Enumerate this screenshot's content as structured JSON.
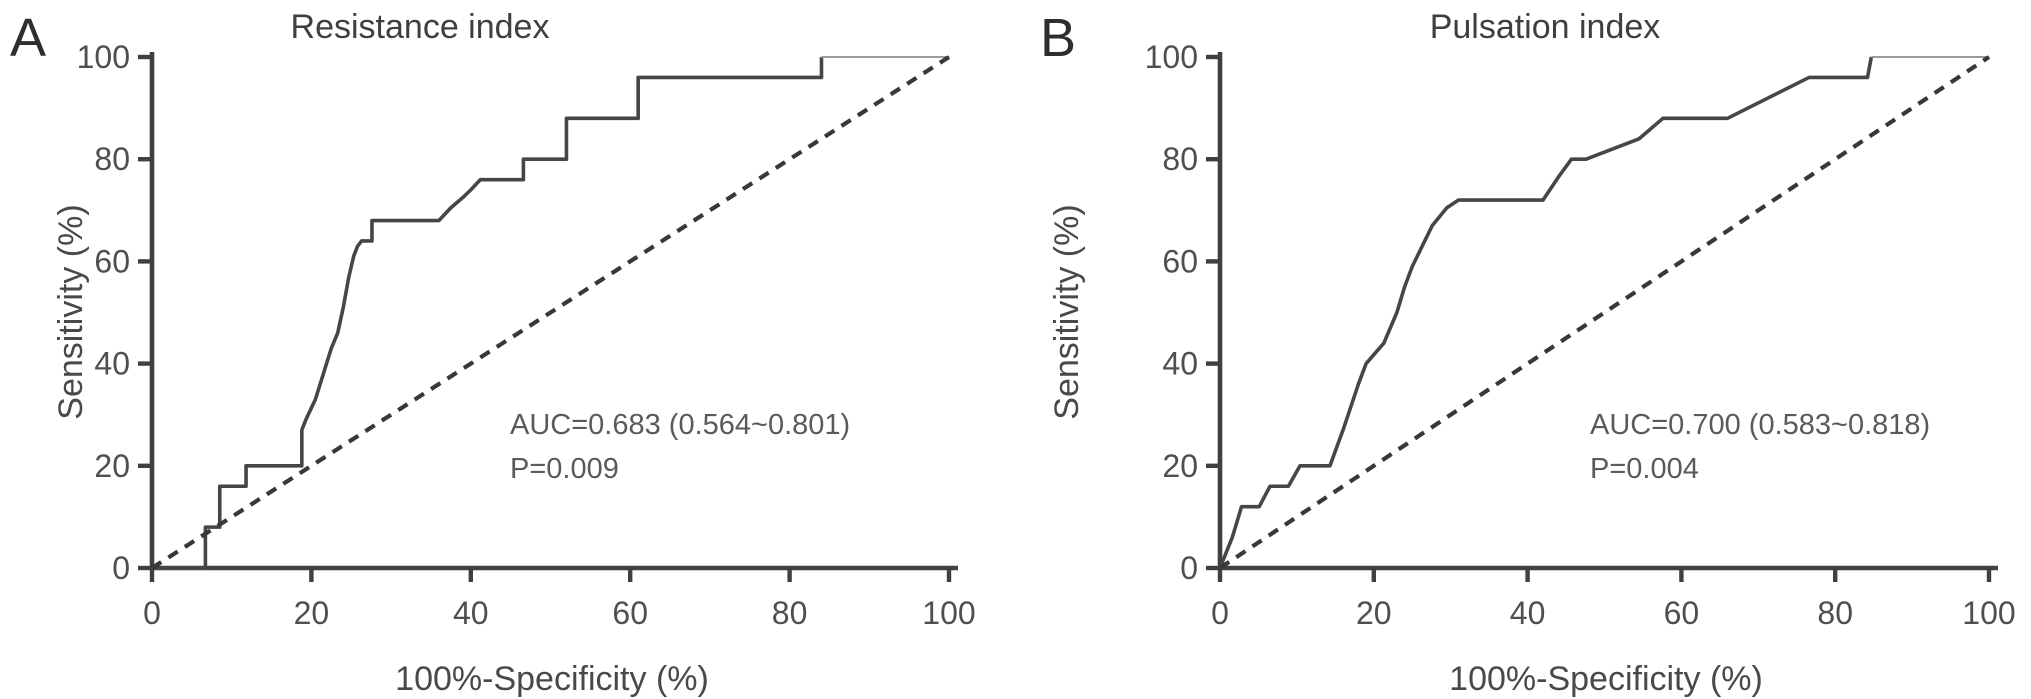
{
  "chart_data": [
    {
      "type": "line",
      "panel_letter": "A",
      "title": "Resistance index",
      "xlabel": "100%-Specificity (%)",
      "ylabel": "Sensitivity (%)",
      "xlim": [
        0,
        100
      ],
      "ylim": [
        0,
        100
      ],
      "x_ticks": [
        0,
        20,
        40,
        60,
        80,
        100
      ],
      "y_ticks": [
        0,
        20,
        40,
        60,
        80,
        100
      ],
      "grid": false,
      "annotation": {
        "auc_text": "AUC=0.683 (0.564~0.801)",
        "p_text": "P=0.009"
      },
      "series": [
        {
          "name": "ROC curve",
          "style": "solid",
          "points": [
            [
              0,
              0
            ],
            [
              6.7,
              0
            ],
            [
              6.7,
              8
            ],
            [
              8.5,
              8
            ],
            [
              8.5,
              16
            ],
            [
              11.8,
              16
            ],
            [
              11.8,
              20
            ],
            [
              18.8,
              20
            ],
            [
              18.8,
              27
            ],
            [
              19.3,
              29
            ],
            [
              20.5,
              33
            ],
            [
              21.5,
              38
            ],
            [
              22.5,
              43
            ],
            [
              23.3,
              46
            ],
            [
              24,
              51
            ],
            [
              24.7,
              57
            ],
            [
              25.3,
              61
            ],
            [
              25.8,
              63
            ],
            [
              26.3,
              64
            ],
            [
              27.6,
              64
            ],
            [
              27.6,
              68
            ],
            [
              36,
              68
            ],
            [
              37.5,
              70.5
            ],
            [
              39,
              72.5
            ],
            [
              40,
              74
            ],
            [
              41.2,
              76
            ],
            [
              46.6,
              76
            ],
            [
              46.6,
              80
            ],
            [
              52,
              80
            ],
            [
              52,
              88
            ],
            [
              61,
              88
            ],
            [
              61,
              96
            ],
            [
              84,
              96
            ],
            [
              84,
              100
            ],
            [
              100,
              100
            ]
          ]
        },
        {
          "name": "reference diagonal",
          "style": "dashed",
          "points": [
            [
              0,
              0
            ],
            [
              100,
              100
            ]
          ]
        }
      ]
    },
    {
      "type": "line",
      "panel_letter": "B",
      "title": "Pulsation index",
      "xlabel": "100%-Specificity (%)",
      "ylabel": "Sensitivity (%)",
      "xlim": [
        0,
        100
      ],
      "ylim": [
        0,
        100
      ],
      "x_ticks": [
        0,
        20,
        40,
        60,
        80,
        100
      ],
      "y_ticks": [
        0,
        20,
        40,
        60,
        80,
        100
      ],
      "grid": false,
      "annotation": {
        "auc_text": "AUC=0.700 (0.583~0.818)",
        "p_text": "P=0.004"
      },
      "series": [
        {
          "name": "ROC curve",
          "style": "solid",
          "points": [
            [
              0,
              0
            ],
            [
              1.6,
              6
            ],
            [
              2.8,
              12
            ],
            [
              5.1,
              12
            ],
            [
              6.5,
              16
            ],
            [
              8.9,
              16
            ],
            [
              10.4,
              20
            ],
            [
              14.3,
              20
            ],
            [
              16,
              27
            ],
            [
              18,
              36
            ],
            [
              19,
              40
            ],
            [
              21.3,
              44
            ],
            [
              23,
              50
            ],
            [
              24,
              55
            ],
            [
              25,
              59
            ],
            [
              26.3,
              63
            ],
            [
              27.6,
              67
            ],
            [
              29.5,
              70.5
            ],
            [
              31,
              72
            ],
            [
              42,
              72
            ],
            [
              44,
              76.5
            ],
            [
              45.7,
              80
            ],
            [
              47.6,
              80
            ],
            [
              54.5,
              84
            ],
            [
              57.6,
              88
            ],
            [
              66,
              88
            ],
            [
              76.6,
              96
            ],
            [
              84.2,
              96
            ],
            [
              84.7,
              100
            ],
            [
              100,
              100
            ]
          ]
        },
        {
          "name": "reference diagonal",
          "style": "dashed",
          "points": [
            [
              0,
              0
            ],
            [
              100,
              100
            ]
          ]
        }
      ]
    }
  ],
  "colors": {
    "background": "#ffffff",
    "axis": "#404040",
    "curve": "#464646",
    "curve_top": "#9a9a9a",
    "dashed": "#383838",
    "text": "#4a4a4a"
  }
}
